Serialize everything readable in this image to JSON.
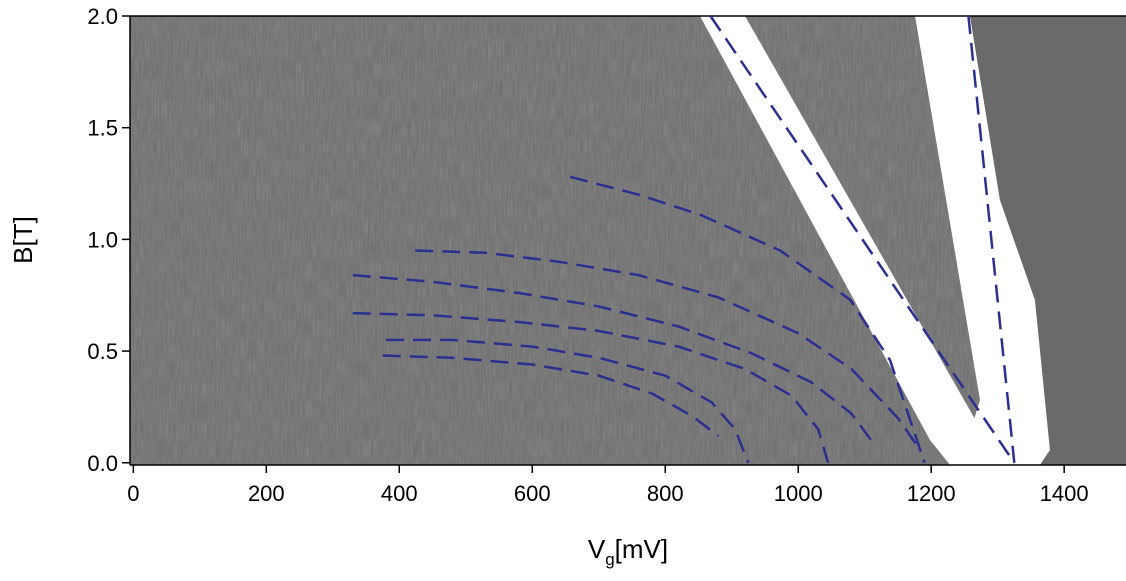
{
  "chart_data": {
    "type": "line",
    "x_label": {
      "main": "V",
      "sub": "g",
      "unit": "[mV]"
    },
    "y_label": "B[T]",
    "xlim": [
      -5,
      1493
    ],
    "ylim": [
      -0.01,
      2.0
    ],
    "xticks": [
      0,
      200,
      400,
      600,
      800,
      1000,
      1200,
      1400
    ],
    "yticks": [
      {
        "value": 0,
        "label": "0.0"
      },
      {
        "value": 0.5,
        "label": "0.5"
      },
      {
        "value": 1,
        "label": "1.0"
      },
      {
        "value": 1.5,
        "label": "1.5"
      },
      {
        "value": 2,
        "label": "2.0"
      }
    ],
    "line_style": "dashed",
    "series": [
      {
        "color": "#2b2f8f",
        "x": [
          657,
          760,
          853,
          973,
          1078,
          1138,
          1190
        ],
        "values": [
          1.28,
          1.2,
          1.11,
          0.95,
          0.73,
          0.46,
          0.0
        ]
      },
      {
        "color": "#2b2f8f",
        "x": [
          424,
          530,
          640,
          760,
          880,
          1000,
          1080,
          1150,
          1185
        ],
        "values": [
          0.95,
          0.94,
          0.9,
          0.84,
          0.74,
          0.58,
          0.42,
          0.2,
          0.05
        ]
      },
      {
        "color": "#2b2f8f",
        "x": [
          330,
          450,
          580,
          700,
          820,
          930,
          1020,
          1080,
          1110
        ],
        "values": [
          0.84,
          0.81,
          0.76,
          0.7,
          0.61,
          0.49,
          0.36,
          0.22,
          0.1
        ]
      },
      {
        "color": "#2b2f8f",
        "x": [
          330,
          450,
          580,
          700,
          820,
          920,
          990,
          1030,
          1045
        ],
        "values": [
          0.67,
          0.66,
          0.63,
          0.59,
          0.52,
          0.42,
          0.3,
          0.15,
          0.0
        ]
      },
      {
        "color": "#2b2f8f",
        "x": [
          380,
          480,
          600,
          700,
          800,
          870,
          905,
          925
        ],
        "values": [
          0.55,
          0.55,
          0.52,
          0.47,
          0.39,
          0.27,
          0.15,
          0.0
        ]
      },
      {
        "color": "#2b2f8f",
        "x": [
          375,
          480,
          600,
          700,
          780,
          840,
          880
        ],
        "values": [
          0.48,
          0.47,
          0.44,
          0.39,
          0.31,
          0.21,
          0.12
        ]
      },
      {
        "color": "#2b2f8f",
        "x": [
          868,
          1325
        ],
        "values": [
          2.0,
          0.0
        ]
      },
      {
        "color": "#2b2f8f",
        "x": [
          1256,
          1325
        ],
        "values": [
          2.0,
          0.0
        ]
      }
    ]
  }
}
